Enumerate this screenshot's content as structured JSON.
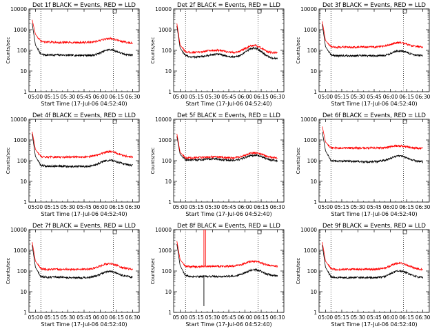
{
  "figure": {
    "y_label": "Counts/sec",
    "x_label": "Start Time (17-Jul-06 04:52:40)",
    "x_tick_labels": [
      "05:00",
      "05:15",
      "05:30",
      "05:45",
      "06:00",
      "06:15",
      "06:30"
    ],
    "y_tick_labels": [
      "1",
      "10",
      "100",
      "1000",
      "10000"
    ],
    "colors": {
      "events": "#000000",
      "lld": "#ff0000",
      "axis": "#000000"
    }
  },
  "chart_data": [
    {
      "type": "line",
      "title": "Det 1f BLACK = Events, RED = LLD",
      "ylim": [
        1,
        10000
      ],
      "y_scale": "log",
      "x_minutes": [
        -3,
        0,
        5,
        10,
        15,
        20,
        25,
        30,
        35,
        40,
        45,
        50,
        55,
        60,
        65,
        70,
        75,
        80,
        85,
        90
      ],
      "series": [
        {
          "name": "Events",
          "values": [
            2000,
            180,
            65,
            60,
            60,
            60,
            60,
            58,
            58,
            58,
            58,
            58,
            60,
            75,
            100,
            110,
            90,
            70,
            62,
            60
          ]
        },
        {
          "name": "LLD",
          "values": [
            3000,
            600,
            270,
            250,
            250,
            240,
            240,
            240,
            240,
            240,
            240,
            250,
            260,
            300,
            360,
            380,
            320,
            270,
            240,
            230
          ]
        }
      ]
    },
    {
      "type": "line",
      "title": "Det 2f BLACK = Events, RED = LLD",
      "ylim": [
        1,
        10000
      ],
      "y_scale": "log",
      "x_minutes": [
        -3,
        0,
        5,
        10,
        15,
        20,
        25,
        30,
        35,
        40,
        45,
        50,
        55,
        60,
        65,
        70,
        75,
        80,
        85,
        90
      ],
      "series": [
        {
          "name": "Events",
          "values": [
            1500,
            130,
            55,
            48,
            48,
            50,
            55,
            62,
            65,
            58,
            50,
            48,
            55,
            80,
            120,
            130,
            90,
            55,
            42,
            40
          ]
        },
        {
          "name": "LLD",
          "values": [
            2000,
            180,
            85,
            80,
            80,
            85,
            95,
            100,
            100,
            92,
            82,
            80,
            90,
            120,
            160,
            170,
            130,
            90,
            78,
            75
          ]
        }
      ]
    },
    {
      "type": "line",
      "title": "Det 3f BLACK = Events, RED = LLD",
      "ylim": [
        1,
        10000
      ],
      "y_scale": "log",
      "x_minutes": [
        -3,
        0,
        5,
        10,
        15,
        20,
        25,
        30,
        35,
        40,
        45,
        50,
        55,
        60,
        65,
        70,
        75,
        80,
        85,
        90
      ],
      "series": [
        {
          "name": "Events",
          "values": [
            1800,
            150,
            60,
            55,
            55,
            55,
            55,
            55,
            55,
            55,
            55,
            55,
            58,
            70,
            90,
            95,
            80,
            65,
            58,
            55
          ]
        },
        {
          "name": "LLD",
          "values": [
            2500,
            300,
            150,
            140,
            145,
            145,
            145,
            145,
            145,
            145,
            145,
            150,
            160,
            190,
            230,
            240,
            200,
            165,
            150,
            145
          ]
        }
      ]
    },
    {
      "type": "line",
      "title": "Det 4f BLACK = Events, RED = LLD",
      "ylim": [
        1,
        10000
      ],
      "y_scale": "log",
      "x_minutes": [
        -3,
        0,
        5,
        10,
        15,
        20,
        25,
        30,
        35,
        40,
        45,
        50,
        55,
        60,
        65,
        70,
        75,
        80,
        85,
        90
      ],
      "series": [
        {
          "name": "Events",
          "values": [
            2000,
            160,
            60,
            55,
            55,
            55,
            55,
            52,
            52,
            52,
            52,
            55,
            60,
            80,
            100,
            105,
            90,
            75,
            65,
            60
          ]
        },
        {
          "name": "LLD",
          "values": [
            2500,
            350,
            160,
            150,
            150,
            150,
            150,
            150,
            150,
            150,
            155,
            160,
            175,
            210,
            260,
            280,
            230,
            185,
            160,
            150
          ]
        }
      ]
    },
    {
      "type": "line",
      "title": "Det 5f BLACK = Events, RED = LLD",
      "ylim": [
        1,
        10000
      ],
      "y_scale": "log",
      "x_minutes": [
        -3,
        0,
        5,
        10,
        15,
        20,
        25,
        30,
        35,
        40,
        45,
        50,
        55,
        60,
        65,
        70,
        75,
        80,
        85,
        90
      ],
      "series": [
        {
          "name": "Events",
          "values": [
            1500,
            200,
            110,
            105,
            108,
            112,
            118,
            122,
            118,
            110,
            105,
            105,
            115,
            140,
            175,
            185,
            160,
            125,
            105,
            100
          ]
        },
        {
          "name": "LLD",
          "values": [
            2000,
            250,
            140,
            135,
            140,
            145,
            150,
            155,
            150,
            142,
            138,
            140,
            150,
            185,
            230,
            245,
            210,
            165,
            140,
            135
          ]
        }
      ]
    },
    {
      "type": "line",
      "title": "Det 6f BLACK = Events, RED = LLD",
      "ylim": [
        1,
        10000
      ],
      "y_scale": "log",
      "x_minutes": [
        -3,
        0,
        5,
        10,
        15,
        20,
        25,
        30,
        35,
        40,
        45,
        50,
        55,
        60,
        65,
        70,
        75,
        80,
        85,
        90
      ],
      "series": [
        {
          "name": "Events",
          "values": [
            2500,
            300,
            100,
            95,
            95,
            95,
            95,
            90,
            88,
            88,
            90,
            95,
            105,
            130,
            165,
            170,
            140,
            110,
            95,
            90
          ]
        },
        {
          "name": "LLD",
          "values": [
            4500,
            800,
            420,
            410,
            410,
            410,
            410,
            410,
            410,
            410,
            410,
            415,
            430,
            470,
            520,
            520,
            480,
            430,
            400,
            390
          ]
        }
      ]
    },
    {
      "type": "line",
      "title": "Det 7f BLACK = Events, RED = LLD",
      "ylim": [
        1,
        10000
      ],
      "y_scale": "log",
      "x_minutes": [
        -3,
        0,
        5,
        10,
        15,
        20,
        25,
        30,
        35,
        40,
        45,
        50,
        55,
        60,
        65,
        70,
        75,
        80,
        85,
        90
      ],
      "series": [
        {
          "name": "Events",
          "values": [
            1800,
            150,
            55,
            50,
            50,
            50,
            50,
            48,
            48,
            48,
            48,
            50,
            55,
            70,
            90,
            95,
            80,
            62,
            55,
            50
          ]
        },
        {
          "name": "LLD",
          "values": [
            2500,
            300,
            130,
            120,
            120,
            120,
            120,
            120,
            120,
            120,
            122,
            125,
            140,
            175,
            220,
            230,
            190,
            150,
            130,
            120
          ]
        }
      ]
    },
    {
      "type": "line",
      "title": "Det 8f BLACK = Events, RED = LLD",
      "ylim": [
        1,
        10000
      ],
      "y_scale": "log",
      "x_minutes": [
        -3,
        0,
        5,
        10,
        15,
        20,
        25,
        30,
        35,
        40,
        45,
        50,
        55,
        60,
        65,
        70,
        75,
        80,
        85,
        90
      ],
      "series": [
        {
          "name": "Events",
          "values": [
            2000,
            180,
            60,
            55,
            55,
            55,
            55,
            55,
            55,
            55,
            55,
            58,
            65,
            85,
            110,
            115,
            95,
            72,
            62,
            58
          ]
        },
        {
          "name": "LLD",
          "values": [
            2800,
            350,
            170,
            160,
            165,
            168,
            170,
            170,
            170,
            170,
            172,
            178,
            195,
            240,
            290,
            300,
            250,
            200,
            175,
            165
          ]
        }
      ],
      "annotations": [
        {
          "series": "LLD",
          "x_minutes": 22,
          "y": 10000,
          "note": "spike"
        },
        {
          "series": "LLD",
          "x_minutes": 23.5,
          "y": 10000,
          "note": "spike"
        },
        {
          "series": "Events",
          "x_minutes": 22,
          "y": 2,
          "note": "dropout"
        }
      ]
    },
    {
      "type": "line",
      "title": "Det 9f BLACK = Events, RED = LLD",
      "ylim": [
        1,
        10000
      ],
      "y_scale": "log",
      "x_minutes": [
        -3,
        0,
        5,
        10,
        15,
        20,
        25,
        30,
        35,
        40,
        45,
        50,
        55,
        60,
        65,
        70,
        75,
        80,
        85,
        90
      ],
      "series": [
        {
          "name": "Events",
          "values": [
            1800,
            150,
            52,
            48,
            48,
            48,
            48,
            48,
            48,
            48,
            48,
            50,
            55,
            72,
            95,
            100,
            82,
            62,
            52,
            48
          ]
        },
        {
          "name": "LLD",
          "values": [
            2500,
            300,
            130,
            120,
            120,
            120,
            120,
            120,
            120,
            120,
            122,
            125,
            140,
            180,
            230,
            240,
            200,
            155,
            130,
            120
          ]
        }
      ]
    }
  ]
}
